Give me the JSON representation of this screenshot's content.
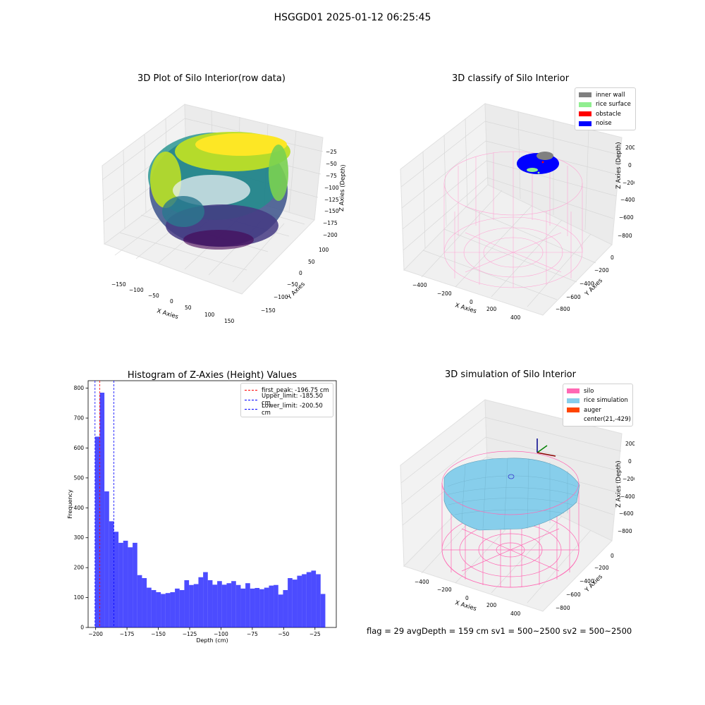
{
  "figure": {
    "suptitle": "HSGGD01 2025-01-12 06:25:45"
  },
  "panel_raw": {
    "title": "3D Plot of Silo Interior(row data)",
    "xlabel": "X Axies",
    "ylabel": "Y Axies",
    "zlabel": "Z Axies (Depth)",
    "xticks": [
      "−150",
      "−100",
      "−50",
      "0",
      "50",
      "100",
      "150"
    ],
    "yticks": [
      "100",
      "50",
      "0",
      "−50",
      "−100",
      "−150"
    ],
    "zticks": [
      "−25",
      "−50",
      "−75",
      "−100",
      "−125",
      "−150",
      "−175",
      "−200"
    ],
    "colormap": "viridis"
  },
  "panel_classify": {
    "title": "3D classify of Silo Interior",
    "xlabel": "X Axies",
    "ylabel": "Y Axies",
    "zlabel": "Z Axies (Depth)",
    "xticks": [
      "−400",
      "−200",
      "0",
      "200",
      "400"
    ],
    "yticks": [
      "0",
      "−200",
      "−400",
      "−600",
      "−800"
    ],
    "zticks": [
      "200",
      "0",
      "−200",
      "−400",
      "−600",
      "−800"
    ],
    "legend": [
      {
        "label": "inner wall",
        "color": "#808080"
      },
      {
        "label": "rice surface",
        "color": "#90ee90"
      },
      {
        "label": "obstacle",
        "color": "#ff0000"
      },
      {
        "label": "noise",
        "color": "#0000ff"
      }
    ]
  },
  "panel_sim": {
    "title": "3D simulation of Silo Interior",
    "xlabel": "X Axies",
    "ylabel": "Y Axies",
    "zlabel": "Z Axies (Depth)",
    "xticks": [
      "−400",
      "−200",
      "0",
      "200",
      "400"
    ],
    "yticks": [
      "0",
      "−200",
      "−400",
      "−600",
      "−800"
    ],
    "zticks": [
      "200",
      "0",
      "−200",
      "−400",
      "−600",
      "−800"
    ],
    "legend": [
      {
        "label": "silo",
        "color": "#ff69b4"
      },
      {
        "label": "rice simulation",
        "color": "#87ceeb"
      },
      {
        "label": "auger",
        "color": "#ff4500"
      },
      {
        "label": "center(21,-429)",
        "color": ""
      }
    ]
  },
  "status": "flag = 29   avgDepth = 159 cm   sv1 = 500~2500   sv2 = 500~2500",
  "chart_data": [
    {
      "type": "histogram",
      "title": "Histogram of Z-Axies (Height) Values",
      "xlabel": "Depth (cm)",
      "ylabel": "Frequency",
      "xlim": [
        -206,
        -8
      ],
      "ylim": [
        0,
        825
      ],
      "xticks": [
        -200,
        -175,
        -150,
        -125,
        -100,
        -75,
        -50,
        -25
      ],
      "yticks": [
        0,
        100,
        200,
        300,
        400,
        500,
        600,
        700,
        800
      ],
      "bin_start": -200.5,
      "bin_width": 3.75,
      "bar_color": "#0000ff",
      "values": [
        638,
        785,
        455,
        355,
        320,
        283,
        290,
        268,
        283,
        175,
        165,
        133,
        125,
        118,
        112,
        115,
        118,
        130,
        125,
        158,
        142,
        145,
        168,
        185,
        158,
        143,
        155,
        143,
        148,
        155,
        142,
        130,
        148,
        130,
        132,
        128,
        133,
        140,
        142,
        110,
        125,
        165,
        160,
        173,
        178,
        185,
        190,
        178,
        112
      ],
      "lines": [
        {
          "label": "first_peak: -196.75 cm",
          "x": -196.75,
          "color": "#ff0000"
        },
        {
          "label": "Upper_limit: -185.50 cm",
          "x": -185.5,
          "color": "#0000ff"
        },
        {
          "label": "Lower_limit: -200.50 cm",
          "x": -200.5,
          "color": "#0000ff"
        }
      ]
    }
  ]
}
